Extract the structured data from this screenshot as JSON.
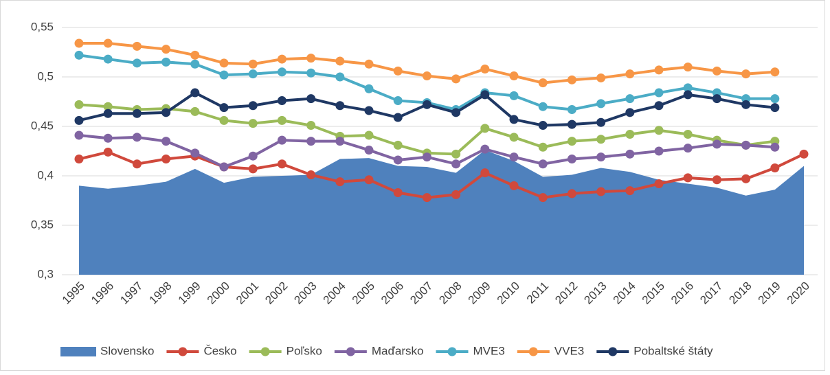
{
  "chart_data": {
    "type": "combo",
    "categories": [
      "1995",
      "1996",
      "1997",
      "1998",
      "1999",
      "2000",
      "2001",
      "2002",
      "2003",
      "2004",
      "2005",
      "2006",
      "2007",
      "2008",
      "2009",
      "2010",
      "2011",
      "2012",
      "2013",
      "2014",
      "2015",
      "2016",
      "2017",
      "2018",
      "2019",
      "2020"
    ],
    "ylim": [
      0.3,
      0.55
    ],
    "yticks": [
      {
        "value": 0.3,
        "label": "0,3"
      },
      {
        "value": 0.35,
        "label": "0,35"
      },
      {
        "value": 0.4,
        "label": "0,4"
      },
      {
        "value": 0.45,
        "label": "0,45"
      },
      {
        "value": 0.5,
        "label": "0,5"
      },
      {
        "value": 0.55,
        "label": "0,55"
      }
    ],
    "grid": true,
    "legend": "bottom",
    "series": [
      {
        "name": "Slovensko",
        "type": "area",
        "color": "#4f81bd",
        "values": [
          0.39,
          0.387,
          0.39,
          0.394,
          0.407,
          0.393,
          0.399,
          0.4,
          0.401,
          0.417,
          0.418,
          0.41,
          0.409,
          0.403,
          0.426,
          0.415,
          0.399,
          0.401,
          0.408,
          0.404,
          0.396,
          0.392,
          0.388,
          0.38,
          0.386,
          0.41
        ]
      },
      {
        "name": "Česko",
        "type": "line",
        "color": "#d0493c",
        "values": [
          0.417,
          0.424,
          0.412,
          0.417,
          0.42,
          0.409,
          0.407,
          0.412,
          0.401,
          0.394,
          0.396,
          0.383,
          0.378,
          0.381,
          0.403,
          0.39,
          0.378,
          0.382,
          0.384,
          0.385,
          0.392,
          0.398,
          0.396,
          0.397,
          0.408,
          0.422
        ]
      },
      {
        "name": "Poľsko",
        "type": "line",
        "color": "#9bbb59",
        "values": [
          0.472,
          0.47,
          0.467,
          0.468,
          0.465,
          0.456,
          0.453,
          0.456,
          0.451,
          0.44,
          0.441,
          0.431,
          0.423,
          0.422,
          0.448,
          0.439,
          0.429,
          0.435,
          0.437,
          0.442,
          0.446,
          0.442,
          0.436,
          0.431,
          0.435,
          null
        ]
      },
      {
        "name": "Maďarsko",
        "type": "line",
        "color": "#8064a2",
        "values": [
          0.441,
          0.438,
          0.439,
          0.435,
          0.423,
          0.409,
          0.42,
          0.436,
          0.435,
          0.435,
          0.426,
          0.416,
          0.419,
          0.412,
          0.427,
          0.419,
          0.412,
          0.417,
          0.419,
          0.422,
          0.425,
          0.428,
          0.432,
          0.431,
          0.429,
          null
        ]
      },
      {
        "name": "MVE3",
        "type": "line",
        "color": "#4bacc6",
        "values": [
          0.522,
          0.518,
          0.514,
          0.515,
          0.513,
          0.502,
          0.503,
          0.505,
          0.504,
          0.5,
          0.488,
          0.476,
          0.474,
          0.467,
          0.484,
          0.481,
          0.47,
          0.467,
          0.473,
          0.478,
          0.484,
          0.489,
          0.484,
          0.478,
          0.478,
          null
        ]
      },
      {
        "name": "VVE3",
        "type": "line",
        "color": "#f79646",
        "values": [
          0.534,
          0.534,
          0.531,
          0.528,
          0.522,
          0.514,
          0.513,
          0.518,
          0.519,
          0.516,
          0.513,
          0.506,
          0.501,
          0.498,
          0.508,
          0.501,
          0.494,
          0.497,
          0.499,
          0.503,
          0.507,
          0.51,
          0.506,
          0.503,
          0.505,
          null
        ]
      },
      {
        "name": "Pobaltské štáty",
        "type": "line",
        "color": "#1f3864",
        "values": [
          0.456,
          0.463,
          0.463,
          0.464,
          0.484,
          0.469,
          0.471,
          0.476,
          0.478,
          0.471,
          0.466,
          0.459,
          0.472,
          0.464,
          0.482,
          0.457,
          0.451,
          0.452,
          0.454,
          0.464,
          0.471,
          0.482,
          0.478,
          0.472,
          0.469,
          null
        ]
      }
    ]
  }
}
